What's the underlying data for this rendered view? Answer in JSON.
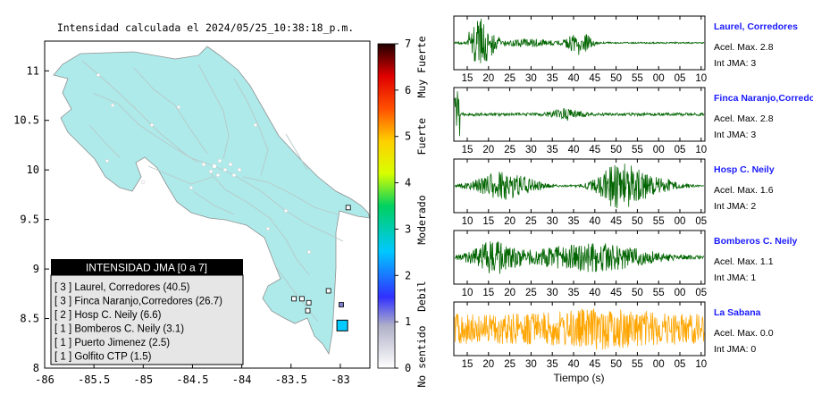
{
  "map": {
    "title": "Intensidad calculada el 2024/05/25_10:38:18_p.m.",
    "x_ticks": [
      "-86",
      "-85.5",
      "-85",
      "-84.5",
      "-84",
      "-83.5",
      "-83"
    ],
    "y_ticks": [
      "11",
      "10.5",
      "10",
      "9.5",
      "9",
      "8.5",
      "8"
    ],
    "xlim": [
      -86,
      -82.7
    ],
    "ylim": [
      8,
      11.3
    ],
    "land_color": "#aeeaea",
    "legend": {
      "title": "INTENSIDAD JMA [0 a 7]",
      "items": [
        "[ 3 ]  Laurel, Corredores (40.5)",
        "[ 3 ]  Finca Naranjo,Corredores (26.7)",
        "[ 2 ]  Hosp C. Neily (6.6)",
        "[ 1 ]  Bomberos C. Neily (3.1)",
        "[ 1 ]  Puerto Jimenez (2.5)",
        "[ 1 ]  Golfito CTP (1.5)"
      ]
    },
    "stations": [
      {
        "lon": -82.98,
        "lat": 8.43,
        "color": "#00ccff"
      },
      {
        "lon": -82.99,
        "lat": 8.64,
        "color": "#8080d0"
      },
      {
        "lon": -83.12,
        "lat": 8.78,
        "color": "#ffffff"
      },
      {
        "lon": -83.33,
        "lat": 8.58,
        "color": "#ffffff"
      },
      {
        "lon": -83.39,
        "lat": 8.7,
        "color": "#ffffff"
      },
      {
        "lon": -83.32,
        "lat": 8.66,
        "color": "#ffffff"
      },
      {
        "lon": -83.47,
        "lat": 8.7,
        "color": "#ffffff"
      },
      {
        "lon": -82.92,
        "lat": 9.62,
        "color": "#ffffff"
      }
    ]
  },
  "colorbar": {
    "ticks": [
      "0",
      "1",
      "2",
      "3",
      "4",
      "5",
      "6",
      "7"
    ],
    "range": [
      0,
      7
    ],
    "category_labels": [
      "No sentido",
      "Debil",
      "Moderado",
      "Fuerte",
      "Muy Fuerte"
    ]
  },
  "seismograms": {
    "xlabel": "Tiempo (s)",
    "panels": [
      {
        "station": "Laurel, Corredores",
        "acel": "Acel. Max. 2.8",
        "int": "Int JMA: 3",
        "ticks": [
          "15",
          "20",
          "25",
          "30",
          "35",
          "40",
          "45",
          "50",
          "55",
          "00",
          "05",
          "10"
        ],
        "color": "#006400",
        "profile": "laurel",
        "amplitude": 1.0
      },
      {
        "station": "Finca Naranjo,Corredores",
        "acel": "Acel. Max. 2.8",
        "int": "Int JMA: 3",
        "ticks": [
          "15",
          "20",
          "25",
          "30",
          "35",
          "40",
          "45",
          "50",
          "55",
          "00",
          "05",
          "10"
        ],
        "color": "#006400",
        "profile": "finca",
        "amplitude": 1.0
      },
      {
        "station": "Hosp C. Neily",
        "acel": "Acel. Max. 1.6",
        "int": "Int JMA: 2",
        "ticks": [
          "10",
          "15",
          "20",
          "25",
          "30",
          "35",
          "40",
          "45",
          "50",
          "55",
          "00",
          "05"
        ],
        "color": "#006400",
        "profile": "neily",
        "amplitude": 1.0
      },
      {
        "station": "Bomberos C. Neily",
        "acel": "Acel. Max. 1.1",
        "int": "Int JMA: 1",
        "ticks": [
          "10",
          "15",
          "20",
          "25",
          "30",
          "35",
          "40",
          "45",
          "50",
          "55",
          "00",
          "05"
        ],
        "color": "#006400",
        "profile": "bomberos",
        "amplitude": 1.0
      },
      {
        "station": "La Sabana",
        "acel": "Acel. Max. 0.0",
        "int": "Int JMA: 0",
        "ticks": [
          "15",
          "20",
          "25",
          "30",
          "35",
          "40",
          "45",
          "50",
          "55",
          "00",
          "05",
          "10"
        ],
        "color": "#ffa500",
        "profile": "sabana",
        "amplitude": 1.0
      }
    ]
  }
}
